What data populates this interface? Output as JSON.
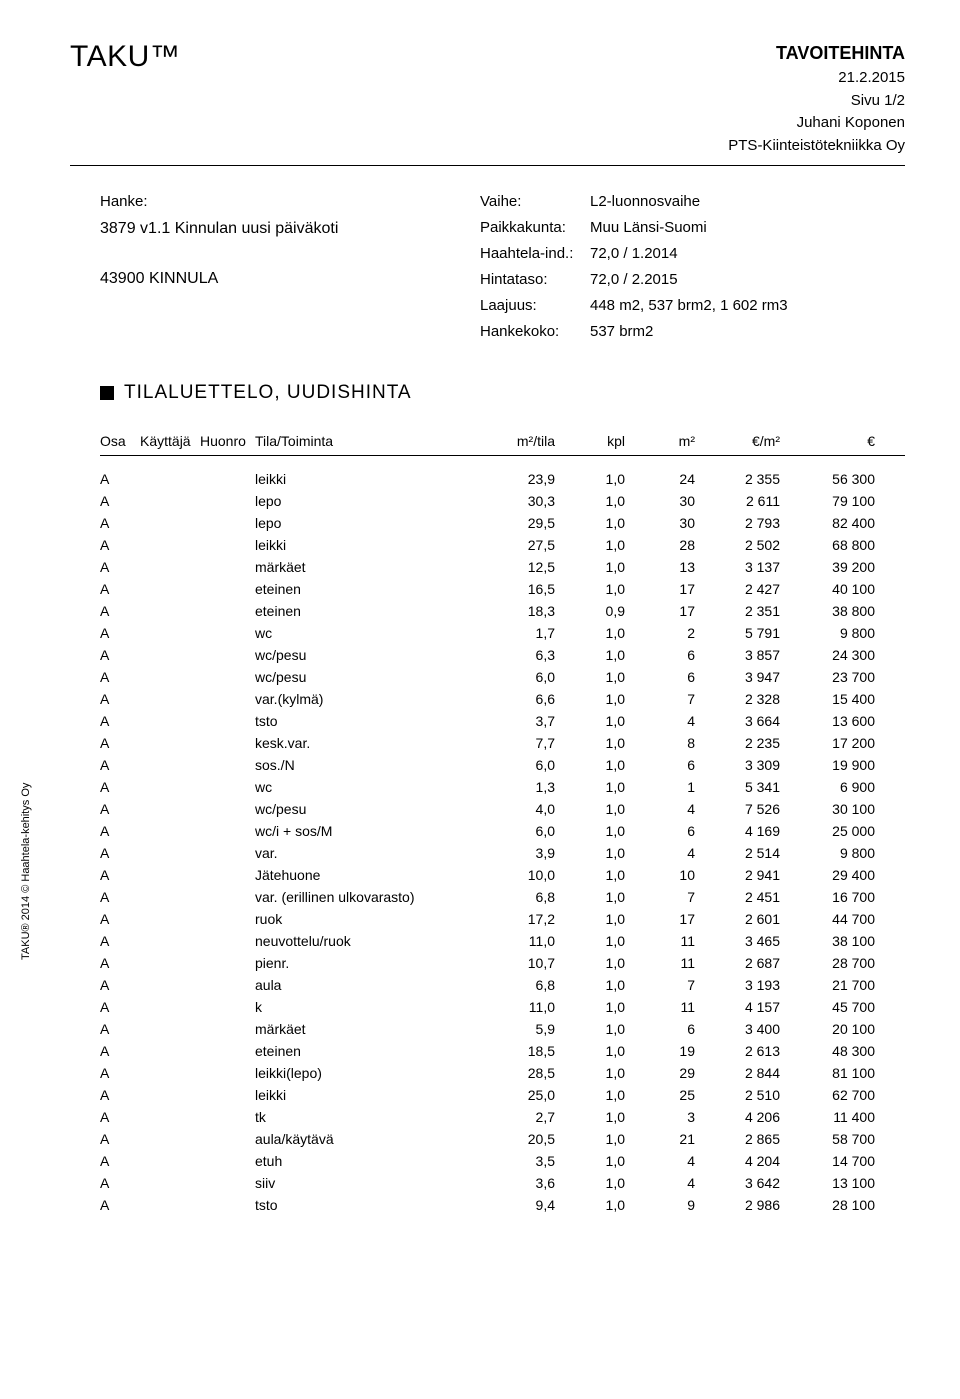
{
  "header": {
    "brand": "TAKU™",
    "title": "TAVOITEHINTA",
    "date": "21.2.2015",
    "page": "Sivu 1/2",
    "author": "Juhani Koponen",
    "company": "PTS-Kiinteistötekniikka Oy"
  },
  "meta_left": {
    "hanke_label": "Hanke:",
    "hanke_name": "3879 v1.1 Kinnulan uusi päiväkoti",
    "kinnula": "43900 KINNULA"
  },
  "meta_right": [
    {
      "k": "Vaihe:",
      "v": "L2-luonnosvaihe"
    },
    {
      "k": "Paikkakunta:",
      "v": "Muu Länsi-Suomi"
    },
    {
      "k": "Haahtela-ind.:",
      "v": "72,0 / 1.2014"
    },
    {
      "k": "Hintataso:",
      "v": "72,0 / 2.2015"
    },
    {
      "k": "Laajuus:",
      "v": "448 m2,  537 brm2, 1 602 rm3"
    },
    {
      "k": "Hankekoko:",
      "v": "537 brm2"
    }
  ],
  "section_title": "TILALUETTELO, UUDISHINTA",
  "columns": {
    "osa": "Osa",
    "kayt": "Käyttäjä",
    "huon": "Huonro",
    "tila": "Tila/Toiminta",
    "m2t": "m²/tila",
    "kpl": "kpl",
    "m2": "m²",
    "em2": "€/m²",
    "eur": "€"
  },
  "rows": [
    {
      "osa": "A",
      "tila": "leikki",
      "m2t": "23,9",
      "kpl": "1,0",
      "m2": "24",
      "em2": "2 355",
      "eur": "56 300"
    },
    {
      "osa": "A",
      "tila": "lepo",
      "m2t": "30,3",
      "kpl": "1,0",
      "m2": "30",
      "em2": "2 611",
      "eur": "79 100"
    },
    {
      "osa": "A",
      "tila": "lepo",
      "m2t": "29,5",
      "kpl": "1,0",
      "m2": "30",
      "em2": "2 793",
      "eur": "82 400"
    },
    {
      "osa": "A",
      "tila": "leikki",
      "m2t": "27,5",
      "kpl": "1,0",
      "m2": "28",
      "em2": "2 502",
      "eur": "68 800"
    },
    {
      "osa": "A",
      "tila": "märkäet",
      "m2t": "12,5",
      "kpl": "1,0",
      "m2": "13",
      "em2": "3 137",
      "eur": "39 200"
    },
    {
      "osa": "A",
      "tila": "eteinen",
      "m2t": "16,5",
      "kpl": "1,0",
      "m2": "17",
      "em2": "2 427",
      "eur": "40 100"
    },
    {
      "osa": "A",
      "tila": "eteinen",
      "m2t": "18,3",
      "kpl": "0,9",
      "m2": "17",
      "em2": "2 351",
      "eur": "38 800"
    },
    {
      "osa": "A",
      "tila": "wc",
      "m2t": "1,7",
      "kpl": "1,0",
      "m2": "2",
      "em2": "5 791",
      "eur": "9 800"
    },
    {
      "osa": "A",
      "tila": "wc/pesu",
      "m2t": "6,3",
      "kpl": "1,0",
      "m2": "6",
      "em2": "3 857",
      "eur": "24 300"
    },
    {
      "osa": "A",
      "tila": "wc/pesu",
      "m2t": "6,0",
      "kpl": "1,0",
      "m2": "6",
      "em2": "3 947",
      "eur": "23 700"
    },
    {
      "osa": "A",
      "tila": "var.(kylmä)",
      "m2t": "6,6",
      "kpl": "1,0",
      "m2": "7",
      "em2": "2 328",
      "eur": "15 400"
    },
    {
      "osa": "A",
      "tila": "tsto",
      "m2t": "3,7",
      "kpl": "1,0",
      "m2": "4",
      "em2": "3 664",
      "eur": "13 600"
    },
    {
      "osa": "A",
      "tila": "kesk.var.",
      "m2t": "7,7",
      "kpl": "1,0",
      "m2": "8",
      "em2": "2 235",
      "eur": "17 200"
    },
    {
      "osa": "A",
      "tila": "sos./N",
      "m2t": "6,0",
      "kpl": "1,0",
      "m2": "6",
      "em2": "3 309",
      "eur": "19 900"
    },
    {
      "osa": "A",
      "tila": "wc",
      "m2t": "1,3",
      "kpl": "1,0",
      "m2": "1",
      "em2": "5 341",
      "eur": "6 900"
    },
    {
      "osa": "A",
      "tila": "wc/pesu",
      "m2t": "4,0",
      "kpl": "1,0",
      "m2": "4",
      "em2": "7 526",
      "eur": "30 100"
    },
    {
      "osa": "A",
      "tila": "wc/i + sos/M",
      "m2t": "6,0",
      "kpl": "1,0",
      "m2": "6",
      "em2": "4 169",
      "eur": "25 000"
    },
    {
      "osa": "A",
      "tila": "var.",
      "m2t": "3,9",
      "kpl": "1,0",
      "m2": "4",
      "em2": "2 514",
      "eur": "9 800"
    },
    {
      "osa": "A",
      "tila": "Jätehuone",
      "m2t": "10,0",
      "kpl": "1,0",
      "m2": "10",
      "em2": "2 941",
      "eur": "29 400"
    },
    {
      "osa": "A",
      "tila": "var. (erillinen ulkovarasto)",
      "m2t": "6,8",
      "kpl": "1,0",
      "m2": "7",
      "em2": "2 451",
      "eur": "16 700"
    },
    {
      "osa": "A",
      "tila": "ruok",
      "m2t": "17,2",
      "kpl": "1,0",
      "m2": "17",
      "em2": "2 601",
      "eur": "44 700"
    },
    {
      "osa": "A",
      "tila": "neuvottelu/ruok",
      "m2t": "11,0",
      "kpl": "1,0",
      "m2": "11",
      "em2": "3 465",
      "eur": "38 100"
    },
    {
      "osa": "A",
      "tila": "pienr.",
      "m2t": "10,7",
      "kpl": "1,0",
      "m2": "11",
      "em2": "2 687",
      "eur": "28 700"
    },
    {
      "osa": "A",
      "tila": "aula",
      "m2t": "6,8",
      "kpl": "1,0",
      "m2": "7",
      "em2": "3 193",
      "eur": "21 700"
    },
    {
      "osa": "A",
      "tila": "k",
      "m2t": "11,0",
      "kpl": "1,0",
      "m2": "11",
      "em2": "4 157",
      "eur": "45 700"
    },
    {
      "osa": "A",
      "tila": "märkäet",
      "m2t": "5,9",
      "kpl": "1,0",
      "m2": "6",
      "em2": "3 400",
      "eur": "20 100"
    },
    {
      "osa": "A",
      "tila": "eteinen",
      "m2t": "18,5",
      "kpl": "1,0",
      "m2": "19",
      "em2": "2 613",
      "eur": "48 300"
    },
    {
      "osa": "A",
      "tila": "leikki(lepo)",
      "m2t": "28,5",
      "kpl": "1,0",
      "m2": "29",
      "em2": "2 844",
      "eur": "81 100"
    },
    {
      "osa": "A",
      "tila": "leikki",
      "m2t": "25,0",
      "kpl": "1,0",
      "m2": "25",
      "em2": "2 510",
      "eur": "62 700"
    },
    {
      "osa": "A",
      "tila": "tk",
      "m2t": "2,7",
      "kpl": "1,0",
      "m2": "3",
      "em2": "4 206",
      "eur": "11 400"
    },
    {
      "osa": "A",
      "tila": "aula/käytävä",
      "m2t": "20,5",
      "kpl": "1,0",
      "m2": "21",
      "em2": "2 865",
      "eur": "58 700"
    },
    {
      "osa": "A",
      "tila": "etuh",
      "m2t": "3,5",
      "kpl": "1,0",
      "m2": "4",
      "em2": "4 204",
      "eur": "14 700"
    },
    {
      "osa": "A",
      "tila": "siiv",
      "m2t": "3,6",
      "kpl": "1,0",
      "m2": "4",
      "em2": "3 642",
      "eur": "13 100"
    },
    {
      "osa": "A",
      "tila": "tsto",
      "m2t": "9,4",
      "kpl": "1,0",
      "m2": "9",
      "em2": "2 986",
      "eur": "28 100"
    }
  ],
  "copyright": "TAKU® 2014 © Haahtela-kehitys Oy",
  "colors": {
    "text": "#000000",
    "background": "#ffffff"
  }
}
